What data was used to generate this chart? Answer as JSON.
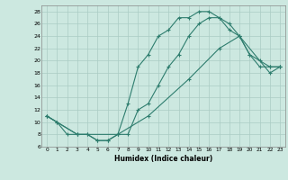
{
  "title": "",
  "xlabel": "Humidex (Indice chaleur)",
  "ylabel": "",
  "xlim": [
    -0.5,
    23.5
  ],
  "ylim": [
    6,
    29
  ],
  "yticks": [
    6,
    8,
    10,
    12,
    14,
    16,
    18,
    20,
    22,
    24,
    26,
    28
  ],
  "xticks": [
    0,
    1,
    2,
    3,
    4,
    5,
    6,
    7,
    8,
    9,
    10,
    11,
    12,
    13,
    14,
    15,
    16,
    17,
    18,
    19,
    20,
    21,
    22,
    23
  ],
  "bg_color": "#cce8e0",
  "grid_color": "#aaccc4",
  "line_color": "#2e7d6e",
  "line1_x": [
    0,
    1,
    2,
    3,
    4,
    5,
    6,
    7,
    8,
    9,
    10,
    11,
    12,
    13,
    14,
    15,
    16,
    17,
    18,
    19,
    20,
    21,
    22,
    23
  ],
  "line1_y": [
    11,
    10,
    8,
    8,
    8,
    7,
    7,
    8,
    13,
    19,
    21,
    24,
    25,
    27,
    27,
    28,
    28,
    27,
    25,
    24,
    21,
    19,
    19,
    19
  ],
  "line2_x": [
    0,
    1,
    3,
    4,
    5,
    6,
    7,
    8,
    9,
    10,
    11,
    12,
    13,
    14,
    15,
    16,
    17,
    18,
    19,
    20,
    21,
    22,
    23
  ],
  "line2_y": [
    11,
    10,
    8,
    8,
    7,
    7,
    8,
    8,
    12,
    13,
    16,
    19,
    21,
    24,
    26,
    27,
    27,
    26,
    24,
    21,
    20,
    19,
    19
  ],
  "line3_x": [
    0,
    3,
    7,
    10,
    14,
    17,
    19,
    22,
    23
  ],
  "line3_y": [
    11,
    8,
    8,
    11,
    17,
    22,
    24,
    18,
    19
  ]
}
